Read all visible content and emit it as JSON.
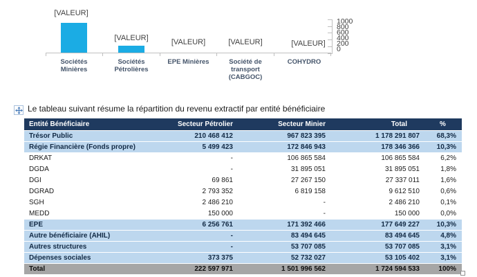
{
  "caption": "Le tableau suivant résume la répartition du revenu extractif par entité bénéficiaire",
  "colors": {
    "header_bg": "#1F3A5F",
    "row_highlight": "#BDD7EE",
    "row_total": "#A6A6A6",
    "bar": "#1BACE4",
    "category_label": "#44546A",
    "axis_line": "#BFBFBF"
  },
  "chart": {
    "value_labels": [
      "[VALEUR]",
      "[VALEUR]",
      "[VALEUR]",
      "[VALEUR]",
      "[VALEUR]"
    ],
    "categories": [
      "Sociétés\nMinières",
      "Sociétés\nPétrolières",
      "EPE Minières",
      "Société de\ntransport\n(CABGOC)",
      "COHYDRO"
    ],
    "y_ticks": [
      "1000",
      "800",
      "600",
      "400",
      "200",
      "0"
    ]
  },
  "chart_data": {
    "type": "bar",
    "categories": [
      "Sociétés Minières",
      "Sociétés Pétrolières",
      "EPE Minières",
      "Société de transport (CABGOC)",
      "COHYDRO"
    ],
    "values": [
      900,
      210,
      0,
      0,
      0
    ],
    "data_label_text": "[VALEUR]",
    "title": "",
    "xlabel": "",
    "ylabel": "",
    "ylim": [
      0,
      1000
    ],
    "y_tick_step": 200,
    "value_axis_side": "right",
    "grid": false,
    "note": "data labels render as [VALEUR] placeholders; values estimated from bar heights"
  },
  "table": {
    "headers": [
      "Entité Bénéficiaire",
      "Secteur Pétrolier",
      "Secteur Minier",
      "Total",
      "%"
    ],
    "rows": [
      {
        "style": "hl",
        "cells": [
          "Trésor Public",
          "210 468 412",
          "967 823 395",
          "1 178 291 807",
          "68,3%"
        ]
      },
      {
        "style": "hl",
        "cells": [
          "Régie Financière (Fonds propre)",
          "5 499 423",
          "172 846 943",
          "178 346 366",
          "10,3%"
        ]
      },
      {
        "style": "plain",
        "cells": [
          "DRKAT",
          "-",
          "106 865 584",
          "106 865 584",
          "6,2%"
        ]
      },
      {
        "style": "plain",
        "cells": [
          "DGDA",
          "-",
          "31 895 051",
          "31 895 051",
          "1,8%"
        ]
      },
      {
        "style": "plain",
        "cells": [
          "DGI",
          "69 861",
          "27 267 150",
          "27 337 011",
          "1,6%"
        ]
      },
      {
        "style": "plain",
        "cells": [
          "DGRAD",
          "2 793 352",
          "6 819 158",
          "9 612 510",
          "0,6%"
        ]
      },
      {
        "style": "plain",
        "cells": [
          "SGH",
          "2 486 210",
          "-",
          "2 486 210",
          "0,1%"
        ]
      },
      {
        "style": "plain",
        "cells": [
          "MEDD",
          "150 000",
          "-",
          "150 000",
          "0,0%"
        ]
      },
      {
        "style": "hl",
        "cells": [
          "EPE",
          "6 256 761",
          "171 392 466",
          "177 649 227",
          "10,3%"
        ]
      },
      {
        "style": "hl",
        "cells": [
          "Autre bénéficiaire (AHIL)",
          "-",
          "83 494 645",
          "83 494 645",
          "4,8%"
        ]
      },
      {
        "style": "hl",
        "cells": [
          "Autres structures",
          "-",
          "53 707 085",
          "53 707 085",
          "3,1%"
        ]
      },
      {
        "style": "hl",
        "cells": [
          "Dépenses sociales",
          "373 375",
          "52 732 027",
          "53 105 402",
          "3,1%"
        ]
      },
      {
        "style": "total",
        "cells": [
          "Total",
          "222 597 971",
          "1 501 996 562",
          "1 724 594 533",
          "100%"
        ]
      }
    ]
  }
}
